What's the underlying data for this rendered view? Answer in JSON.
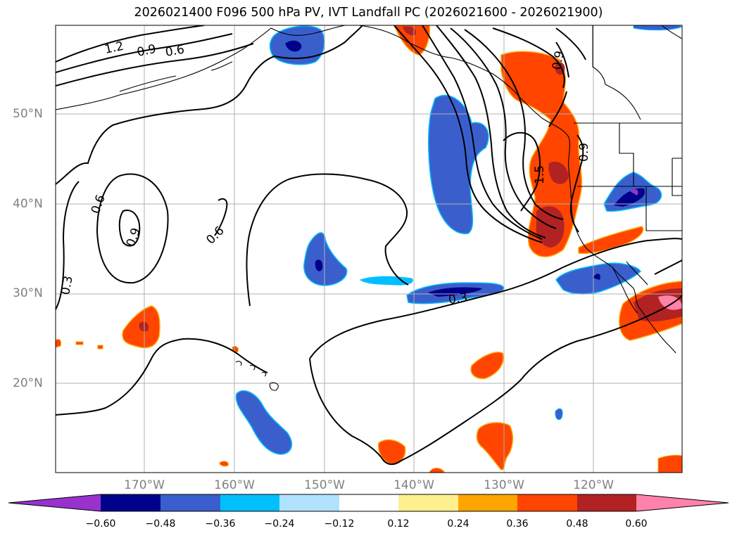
{
  "title": "2026021400 F096 500 hPa PV, IVT Landfall PC (2026021600 - 2026021900)",
  "map": {
    "lat_labels": [
      "50°N",
      "40°N",
      "30°N",
      "20°N"
    ],
    "lon_labels": [
      "170°W",
      "160°W",
      "150°W",
      "140°W",
      "130°W",
      "120°W"
    ],
    "contour_labels": [
      "1.2",
      "0.9",
      "0.6",
      "0.6",
      "0.9",
      "0.6",
      "0.3",
      "0.3",
      "1.5",
      "0.9",
      "0.9"
    ]
  },
  "colorbar": {
    "ticks": [
      "−0.60",
      "−0.48",
      "−0.36",
      "−0.24",
      "−0.12",
      "0.12",
      "0.24",
      "0.36",
      "0.48",
      "0.60"
    ],
    "colors": [
      "#9932cc",
      "#00008b",
      "#3a5fcd",
      "#00bfff",
      "#b0e2ff",
      "#ffffff",
      "#fff08f",
      "#ffa500",
      "#ff4500",
      "#b22222",
      "#ff82ab"
    ]
  }
}
